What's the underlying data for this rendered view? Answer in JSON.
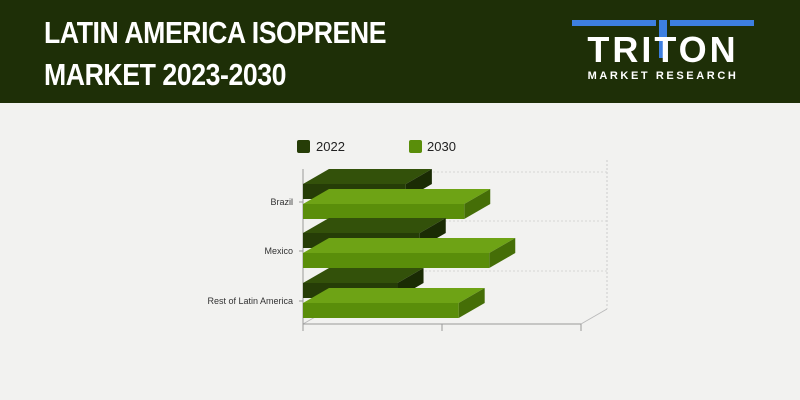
{
  "header": {
    "title_line1": "LATIN AMERICA ISOPRENE",
    "title_line2": "MARKET 2023-2030",
    "logo_main": "TRITON",
    "logo_sub": "MARKET RESEARCH"
  },
  "colors": {
    "header_bg": "#1e2f07",
    "series_2022": "#263d07",
    "series_2030": "#5a8e0a",
    "logo_accent": "#3d7fe0"
  },
  "chart_data": {
    "type": "bar",
    "orientation": "horizontal",
    "style": "3d",
    "categories": [
      "Brazil",
      "Mexico",
      "Rest of Latin America"
    ],
    "series": [
      {
        "name": "2022",
        "values": [
          37,
          42,
          34
        ]
      },
      {
        "name": "2030",
        "values": [
          58,
          67,
          56
        ]
      }
    ],
    "xlim": [
      0,
      100
    ],
    "title": "",
    "xlabel": "",
    "ylabel": "",
    "grid": true,
    "legend": "top"
  }
}
